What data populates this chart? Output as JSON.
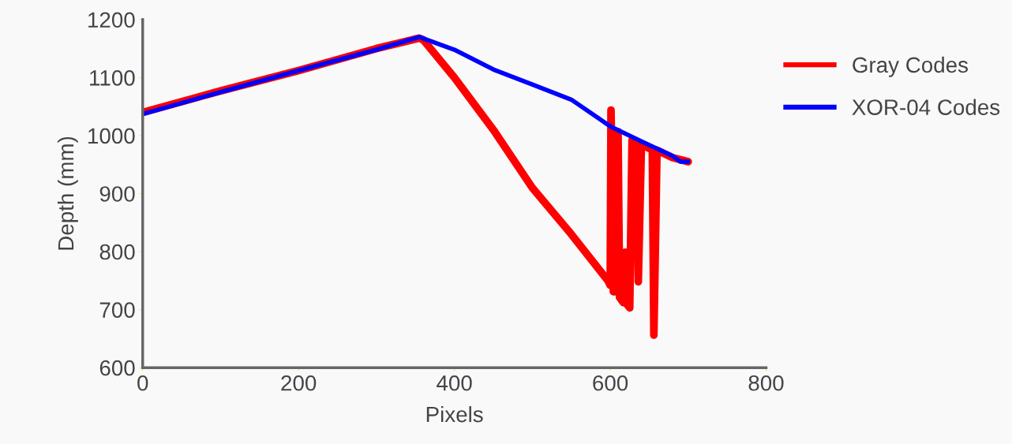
{
  "chart_data": {
    "type": "line",
    "xlabel": "Pixels",
    "ylabel": "Depth (mm)",
    "xlim": [
      0,
      800
    ],
    "ylim": [
      600,
      1200
    ],
    "xticks": [
      0,
      200,
      400,
      600,
      800
    ],
    "yticks": [
      600,
      700,
      800,
      900,
      1000,
      1100,
      1200
    ],
    "grid": false,
    "legend": "top right",
    "marker": "none",
    "line_style": "solid",
    "series": [
      {
        "name": "Gray Codes",
        "color": "#ff0000",
        "x": [
          0,
          100,
          200,
          300,
          355,
          360,
          400,
          450,
          500,
          550,
          597,
          600,
          601,
          604,
          608,
          610,
          612,
          617,
          619,
          621,
          625,
          628,
          630,
          634,
          636,
          640,
          650,
          654,
          656,
          660,
          680,
          700
        ],
        "values": [
          1040,
          1077,
          1112,
          1150,
          1168,
          1165,
          1100,
          1010,
          910,
          830,
          750,
          742,
          1044,
          731,
          731,
          1007,
          721,
          712,
          799,
          710,
          703,
          992,
          985,
          989,
          748,
          985,
          978,
          976,
          656,
          975,
          962,
          955
        ]
      },
      {
        "name": "XOR-04 Codes",
        "color": "#0000ff",
        "x": [
          0,
          100,
          200,
          300,
          355,
          400,
          450,
          500,
          550,
          600,
          640,
          680,
          690,
          700
        ],
        "values": [
          1037,
          1075,
          1112,
          1148,
          1170,
          1148,
          1114,
          1088,
          1062,
          1016,
          990,
          965,
          955,
          955
        ]
      }
    ]
  }
}
